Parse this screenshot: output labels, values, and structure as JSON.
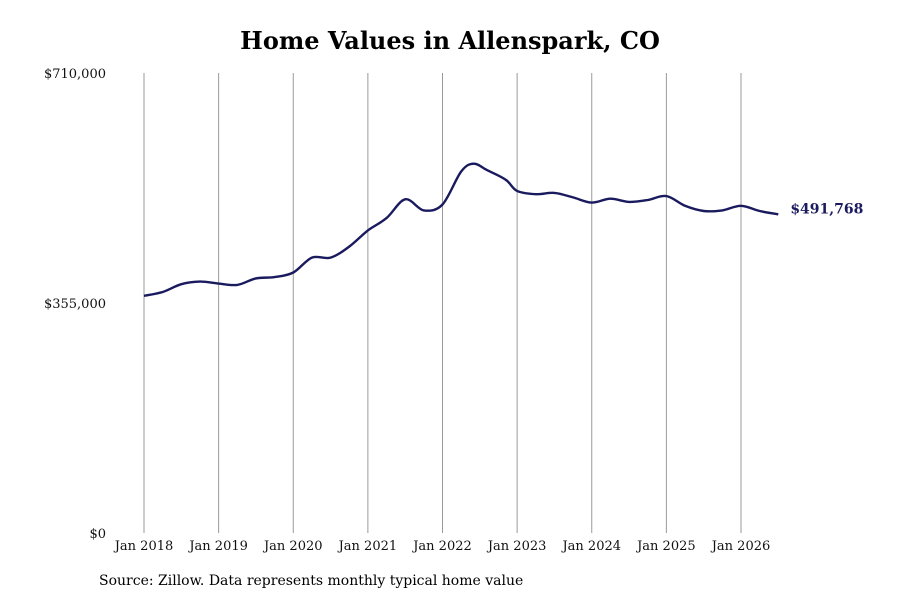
{
  "chart_data": {
    "type": "line",
    "title": "Home Values in Allenspark, CO",
    "source": "Source: Zillow. Data represents monthly typical home value",
    "ylim": [
      0,
      710000
    ],
    "xlim": [
      2018.0,
      2026.5
    ],
    "y_ticks": [
      {
        "value": 0,
        "label": "$0"
      },
      {
        "value": 355000,
        "label": "$355,000"
      },
      {
        "value": 710000,
        "label": "$710,000"
      }
    ],
    "x_ticks": [
      {
        "value": 2018,
        "label": "Jan 2018"
      },
      {
        "value": 2019,
        "label": "Jan 2019"
      },
      {
        "value": 2020,
        "label": "Jan 2020"
      },
      {
        "value": 2021,
        "label": "Jan 2021"
      },
      {
        "value": 2022,
        "label": "Jan 2022"
      },
      {
        "value": 2023,
        "label": "Jan 2023"
      },
      {
        "value": 2024,
        "label": "Jan 2024"
      },
      {
        "value": 2025,
        "label": "Jan 2025"
      },
      {
        "value": 2026,
        "label": "Jan 2026"
      }
    ],
    "grid": {
      "vertical": true,
      "horizontal": false
    },
    "line_color": "#1a1a5e",
    "end_label": "$491,768",
    "series": [
      {
        "x": [
          2018.0,
          2018.25,
          2018.5,
          2018.75,
          2019.0,
          2019.25,
          2019.5,
          2019.75,
          2020.0,
          2020.25,
          2020.5,
          2020.75,
          2021.0,
          2021.25,
          2021.5,
          2021.75,
          2022.0,
          2022.25,
          2022.42,
          2022.6,
          2022.85,
          2023.0,
          2023.25,
          2023.5,
          2023.75,
          2024.0,
          2024.25,
          2024.5,
          2024.75,
          2025.0,
          2025.25,
          2025.5,
          2025.75,
          2026.0,
          2026.25,
          2026.5
        ],
        "y": [
          366000,
          372000,
          384000,
          388000,
          385000,
          383000,
          393000,
          395000,
          402000,
          425000,
          425000,
          442000,
          467000,
          486000,
          515000,
          498000,
          507000,
          558000,
          570000,
          560000,
          545000,
          528000,
          523000,
          525000,
          518000,
          510000,
          516000,
          511000,
          514000,
          520000,
          505000,
          497000,
          498000,
          505000,
          497000,
          491768
        ]
      }
    ]
  }
}
